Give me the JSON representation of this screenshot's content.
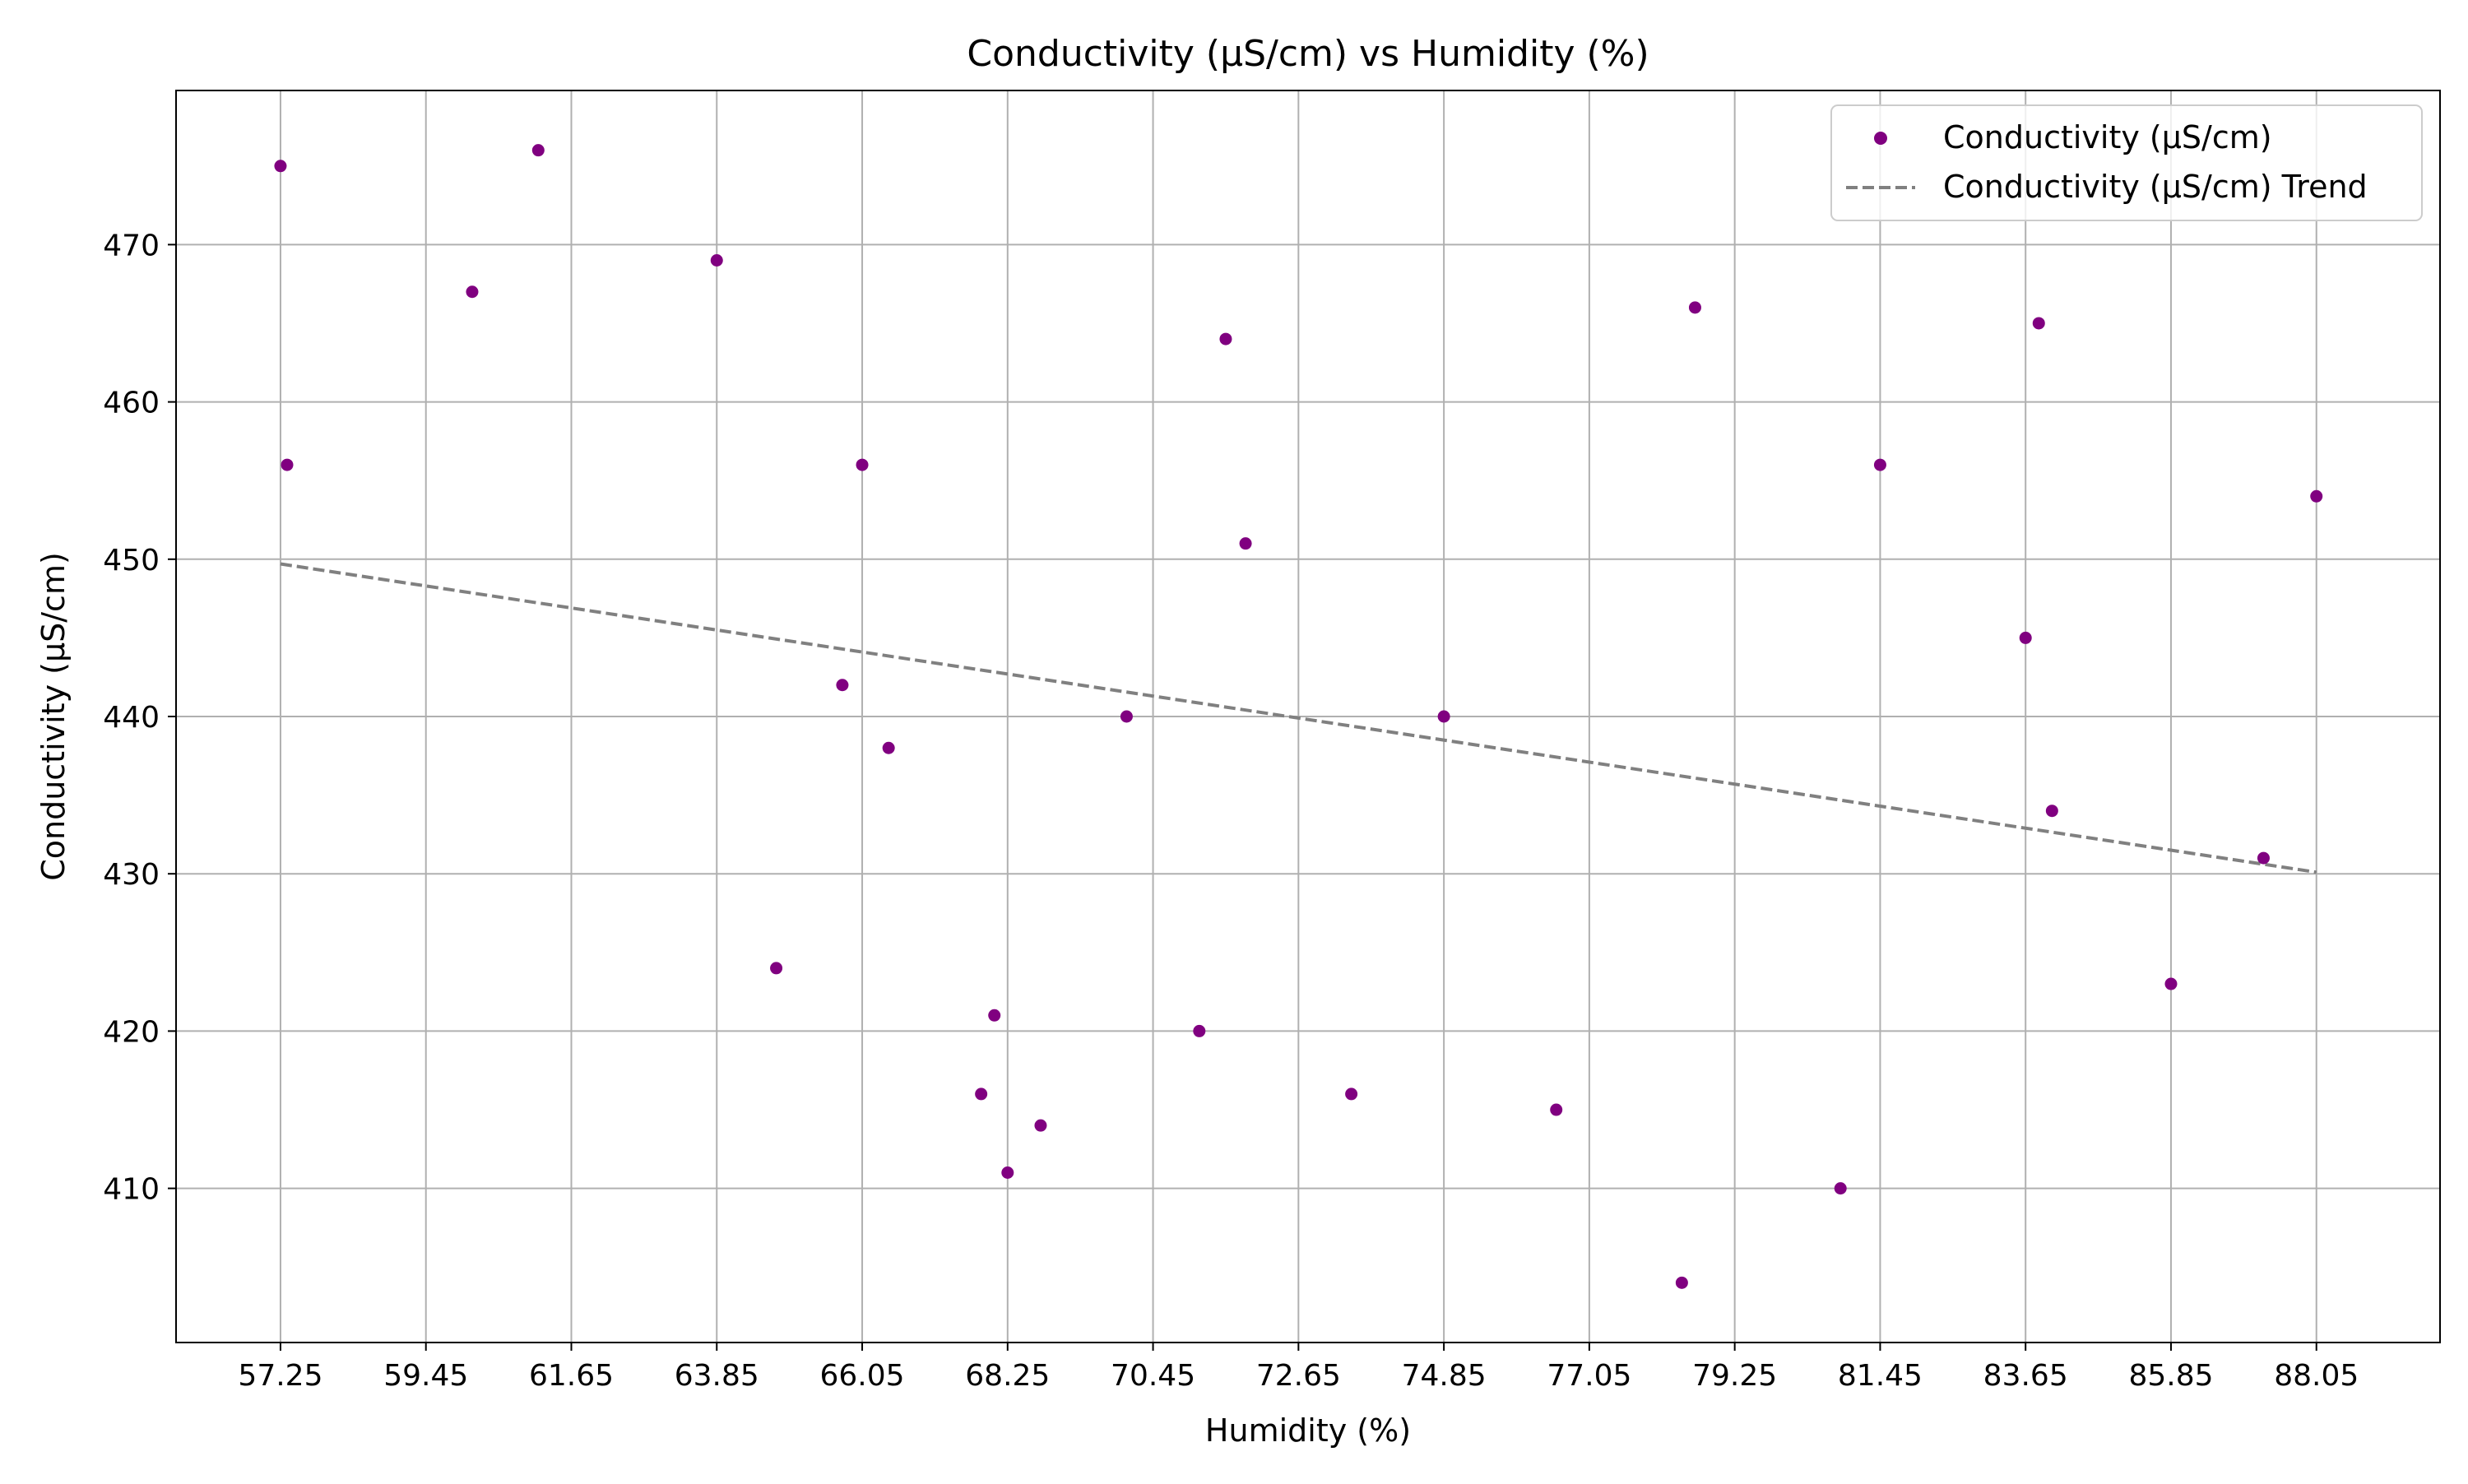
{
  "chart_data": {
    "type": "scatter",
    "title": "Conductivity (µS/cm) vs Humidity (%)",
    "xlabel": "Humidity (%)",
    "ylabel": "Conductivity (µS/cm)",
    "xlim": [
      55.67,
      89.92
    ],
    "ylim": [
      400.2,
      479.8
    ],
    "x_ticks": [
      57.25,
      59.45,
      61.65,
      63.85,
      66.05,
      68.25,
      70.45,
      72.65,
      74.85,
      77.05,
      79.25,
      81.45,
      83.65,
      85.85,
      88.05
    ],
    "x_tick_labels": [
      "57.25",
      "59.45",
      "61.65",
      "63.85",
      "66.05",
      "68.25",
      "70.45",
      "72.65",
      "74.85",
      "77.05",
      "79.25",
      "81.45",
      "83.65",
      "85.85",
      "88.05"
    ],
    "y_ticks": [
      410,
      420,
      430,
      440,
      450,
      460,
      470
    ],
    "y_tick_labels": [
      "410",
      "420",
      "430",
      "440",
      "450",
      "460",
      "470"
    ],
    "grid": true,
    "legend_position": "top-right",
    "series": [
      {
        "name": "Conductivity (µS/cm)",
        "kind": "scatter",
        "color": "#800080",
        "points": [
          {
            "x": 57.25,
            "y": 475
          },
          {
            "x": 57.35,
            "y": 456
          },
          {
            "x": 60.15,
            "y": 467
          },
          {
            "x": 61.15,
            "y": 476
          },
          {
            "x": 63.85,
            "y": 469
          },
          {
            "x": 64.75,
            "y": 424
          },
          {
            "x": 65.75,
            "y": 442
          },
          {
            "x": 66.05,
            "y": 456
          },
          {
            "x": 66.45,
            "y": 438
          },
          {
            "x": 67.85,
            "y": 416
          },
          {
            "x": 68.05,
            "y": 421
          },
          {
            "x": 68.25,
            "y": 411
          },
          {
            "x": 68.75,
            "y": 414
          },
          {
            "x": 70.05,
            "y": 440
          },
          {
            "x": 71.15,
            "y": 420
          },
          {
            "x": 71.55,
            "y": 464
          },
          {
            "x": 71.85,
            "y": 451
          },
          {
            "x": 73.45,
            "y": 416
          },
          {
            "x": 74.85,
            "y": 440
          },
          {
            "x": 76.55,
            "y": 415
          },
          {
            "x": 78.45,
            "y": 404
          },
          {
            "x": 78.65,
            "y": 466
          },
          {
            "x": 80.85,
            "y": 410
          },
          {
            "x": 81.45,
            "y": 456
          },
          {
            "x": 83.65,
            "y": 445
          },
          {
            "x": 83.85,
            "y": 465
          },
          {
            "x": 84.05,
            "y": 434
          },
          {
            "x": 85.85,
            "y": 423
          },
          {
            "x": 87.25,
            "y": 431
          },
          {
            "x": 88.05,
            "y": 454
          }
        ]
      },
      {
        "name": "Conductivity (µS/cm) Trend",
        "kind": "line",
        "style": "dashed",
        "color": "#808080",
        "points": [
          {
            "x": 57.25,
            "y": 449.7
          },
          {
            "x": 88.05,
            "y": 430.1
          }
        ]
      }
    ]
  }
}
